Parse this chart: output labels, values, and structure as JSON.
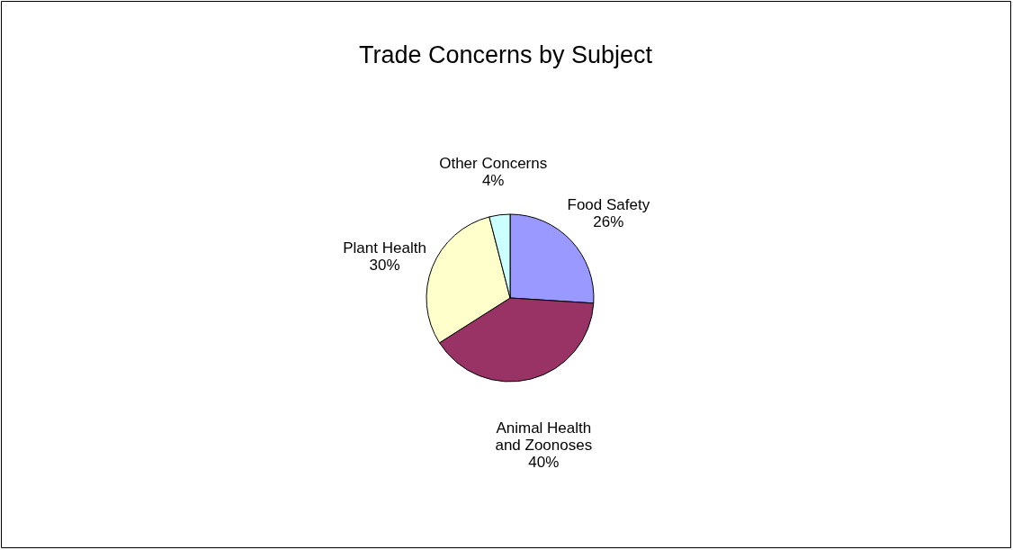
{
  "chart_data": {
    "type": "pie",
    "title": "Trade Concerns by Subject",
    "categories": [
      "Food Safety",
      "Animal Health and Zoonoses",
      "Plant Health",
      "Other Concerns"
    ],
    "values": [
      26,
      40,
      30,
      4
    ],
    "value_labels": [
      "26%",
      "40%",
      "30%",
      "4%"
    ],
    "colors": [
      "#9999ff",
      "#993366",
      "#ffffcc",
      "#ccffff"
    ],
    "legend": false
  }
}
